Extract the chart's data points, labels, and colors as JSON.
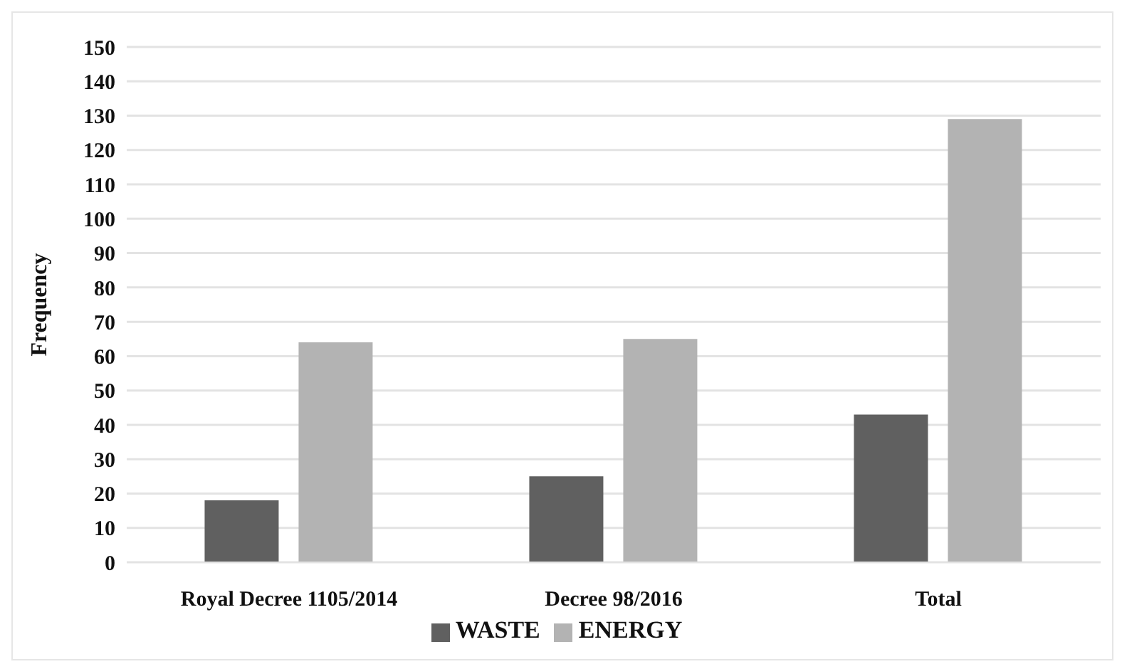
{
  "chart_data": {
    "type": "bar",
    "ylabel": "Frequency",
    "categories": [
      "Royal Decree 1105/2014",
      "Decree 98/2016",
      "Total"
    ],
    "series": [
      {
        "name": "WASTE",
        "color": "#606060",
        "values": [
          18,
          25,
          43
        ]
      },
      {
        "name": "ENERGY",
        "color": "#b3b3b3",
        "values": [
          64,
          65,
          129
        ]
      }
    ],
    "ylim": [
      0,
      150
    ],
    "yticks": [
      0,
      10,
      20,
      30,
      40,
      50,
      60,
      70,
      80,
      90,
      100,
      110,
      120,
      130,
      140,
      150
    ],
    "grid": "y",
    "legend": "bottom"
  }
}
